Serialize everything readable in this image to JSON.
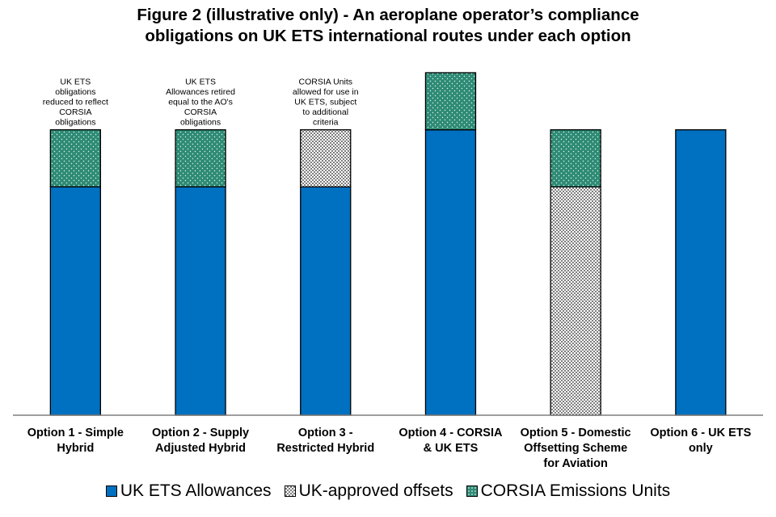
{
  "chart_data": {
    "type": "bar",
    "stacked": true,
    "title_lines": [
      "Figure 2 (illustrative only) -  An aeroplane operator’s compliance",
      "obligations on UK ETS international routes under each option"
    ],
    "categories": [
      [
        "Option 1 - Simple",
        "Hybrid"
      ],
      [
        "Option 2 - Supply",
        "Adjusted Hybrid"
      ],
      [
        "Option 3 -",
        "Restricted Hybrid"
      ],
      [
        "Option 4 - CORSIA",
        "& UK ETS"
      ],
      [
        "Option 5 - Domestic",
        "Offsetting Scheme",
        "for Aviation"
      ],
      [
        "Option 6 - UK ETS",
        "only"
      ]
    ],
    "series": [
      {
        "name": "UK ETS Allowances",
        "color": "#0070C0",
        "pattern": "solid",
        "values": [
          80,
          80,
          80,
          100,
          0,
          100
        ]
      },
      {
        "name": "UK-approved offsets",
        "color": "#A6A6A6",
        "pattern": "checker",
        "values": [
          0,
          0,
          20,
          0,
          80,
          0
        ]
      },
      {
        "name": "CORSIA Emissions Units",
        "color": "#2E8B75",
        "pattern": "dotted",
        "values": [
          20,
          20,
          0,
          20,
          20,
          0
        ]
      }
    ],
    "ylim": [
      0,
      120
    ],
    "annotations": [
      {
        "category_index": 0,
        "lines": [
          "UK ETS",
          "obligations",
          "reduced to reflect",
          "CORSIA",
          "obligations"
        ]
      },
      {
        "category_index": 1,
        "lines": [
          "UK ETS",
          "Allowances  retired",
          "equal to the AO's",
          "CORSIA",
          "obligations"
        ]
      },
      {
        "category_index": 2,
        "lines": [
          "CORSIA Units",
          "allowed  for use in",
          "UK ETS, subject",
          "to additional",
          "criteria"
        ]
      }
    ],
    "legend_position": "bottom",
    "grid": false,
    "y_axis_visible": false
  }
}
